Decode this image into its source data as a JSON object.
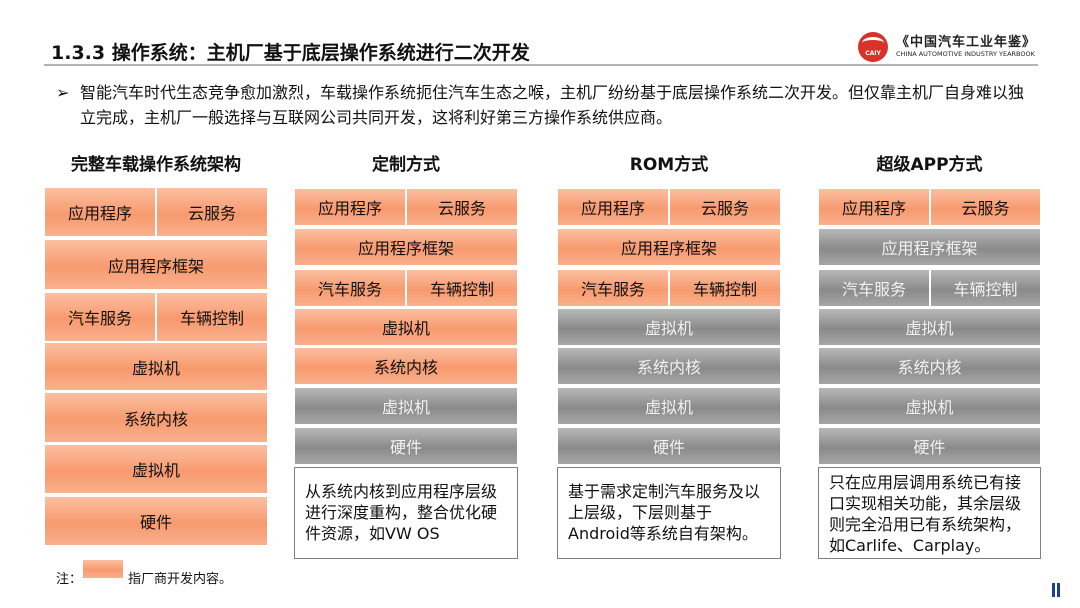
{
  "header": {
    "title": "1.3.3 操作系统：主机厂基于底层操作系统进行二次开发",
    "logo_mark": "CAIY",
    "logo_cn": "《中国汽车工业年鉴》",
    "logo_en": "CHINA AUTOMOTIVE INDUSTRY YEARBOOK"
  },
  "bullet": {
    "marker": "➢",
    "text": "智能汽车时代生态竞争愈加激烈，车载操作系统扼住汽车生态之喉，主机厂纷纷基于底层操作系统二次开发。但仅靠主机厂自身难以独立完成，主机厂一般选择与互联网公司共同开发，这将利好第三方操作系统供应商。"
  },
  "columns": [
    {
      "title": "完整车载操作系统架构",
      "rows": [
        "应用程序",
        "云服务",
        "应用程序框架",
        "汽车服务",
        "车辆控制",
        "虚拟机",
        "系统内核",
        "虚拟机",
        "硬件"
      ]
    },
    {
      "title": "定制方式",
      "rows": [
        "应用程序",
        "云服务",
        "应用程序框架",
        "汽车服务",
        "车辆控制",
        "虚拟机",
        "系统内核",
        "虚拟机",
        "硬件"
      ],
      "desc": "从系统内核到应用程序层级进行深度重构，整合优化硬件资源，如VW OS"
    },
    {
      "title": "ROM方式",
      "rows": [
        "应用程序",
        "云服务",
        "应用程序框架",
        "汽车服务",
        "车辆控制",
        "虚拟机",
        "系统内核",
        "虚拟机",
        "硬件"
      ],
      "desc": "基于需求定制汽车服务及以上层级，下层则基于Android等系统自有架构。"
    },
    {
      "title": "超级APP方式",
      "rows": [
        "应用程序",
        "云服务",
        "应用程序框架",
        "汽车服务",
        "车辆控制",
        "虚拟机",
        "系统内核",
        "虚拟机",
        "硬件"
      ],
      "desc": "只在应用层调用系统已有接口实现相关功能，其余层级则完全沿用已有系统架构，如Carlife、Carplay。"
    }
  ],
  "legend": {
    "prefix": "注：",
    "text": "指厂商开发内容。",
    "color_developed": "#f89a6e",
    "color_inherited": "#8a8a8a"
  }
}
